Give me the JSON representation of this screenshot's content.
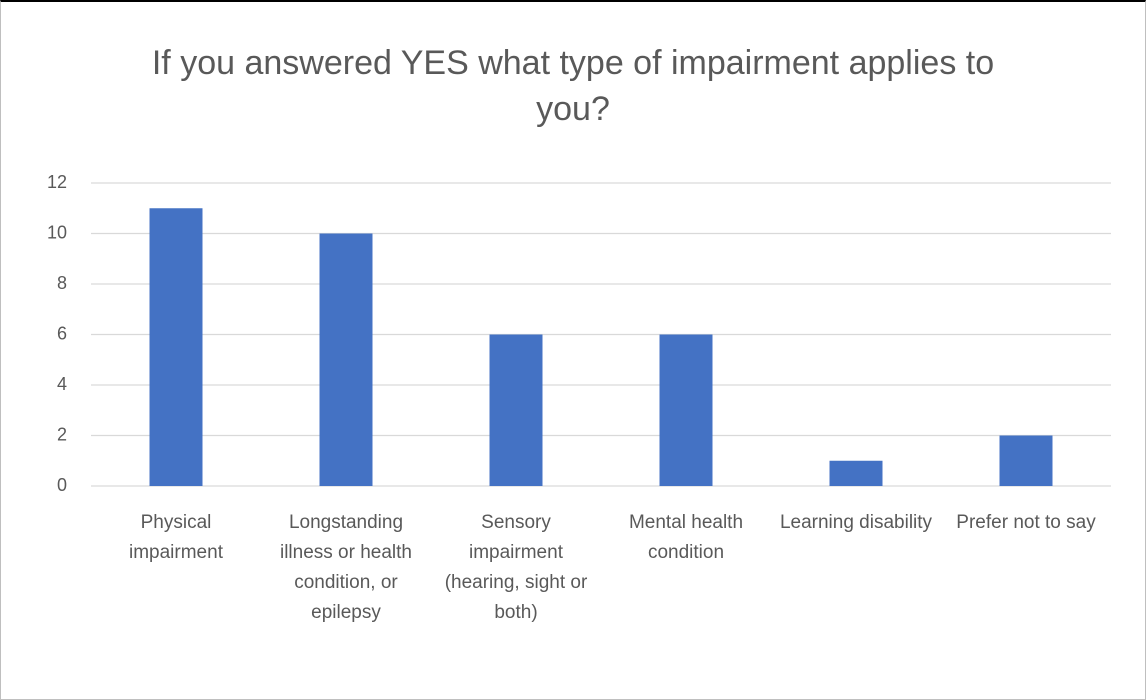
{
  "chart_data": {
    "type": "bar",
    "title": "If you answered YES what type of impairment applies to you?",
    "categories": [
      "Physical impairment",
      "Longstanding illness or health condition, or epilepsy",
      "Sensory impairment (hearing, sight or both)",
      "Mental health condition",
      "Learning disability",
      "Prefer not to say"
    ],
    "values": [
      11,
      10,
      6,
      6,
      1,
      2
    ],
    "color": "#4472c4",
    "ylim": [
      0,
      12
    ],
    "yticks": [
      0,
      2,
      4,
      6,
      8,
      10,
      12
    ],
    "grid": true
  }
}
